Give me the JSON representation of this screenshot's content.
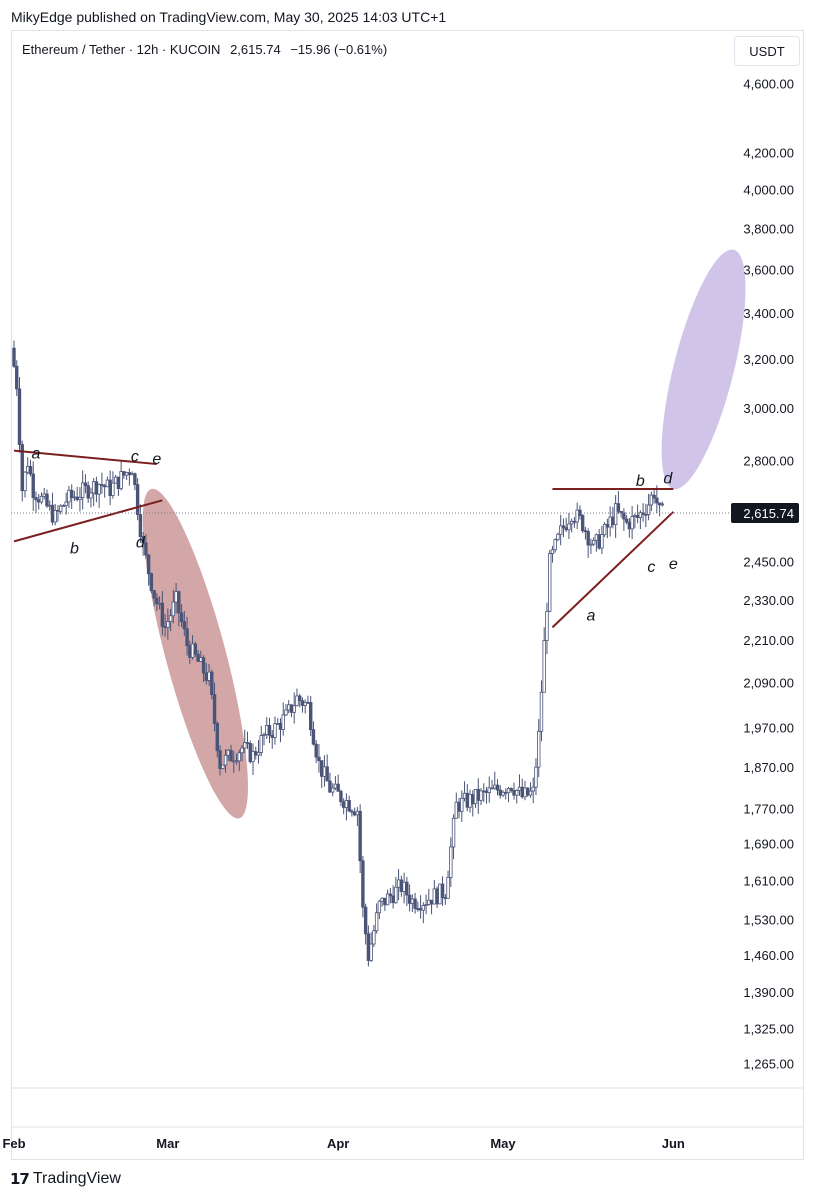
{
  "header": {
    "published_text": "MikyEdge published on TradingView.com, May 30, 2025 14:03 UTC+1"
  },
  "legend": {
    "symbol": "Ethereum / Tether · 12h · KUCOIN",
    "last": "2,615.74",
    "change": "−15.96 (−0.61%)"
  },
  "currency_button": "USDT",
  "brand": {
    "name": "TradingView",
    "logo_icon": "tradingview-logo-icon"
  },
  "colors": {
    "candle": "#4a5477",
    "trendline": "#7b1f1f",
    "bear_ellipse": "#b56a6e",
    "bull_ellipse": "#b39ddb"
  },
  "chart_data": {
    "type": "candlestick",
    "title": "",
    "price_scale": "log",
    "y_ticks": [
      "4,600.00",
      "4,200.00",
      "4,000.00",
      "3,800.00",
      "3,600.00",
      "3,400.00",
      "3,200.00",
      "3,000.00",
      "2,800.00",
      "2,450.00",
      "2,330.00",
      "2,210.00",
      "2,090.00",
      "1,970.00",
      "1,870.00",
      "1,770.00",
      "1,690.00",
      "1,610.00",
      "1,530.00",
      "1,460.00",
      "1,390.00",
      "1,325.00",
      "1,265.00"
    ],
    "y_tick_values": [
      4600,
      4200,
      4000,
      3800,
      3600,
      3400,
      3200,
      3000,
      2800,
      2450,
      2330,
      2210,
      2090,
      1970,
      1870,
      1770,
      1690,
      1610,
      1530,
      1460,
      1390,
      1325,
      1265
    ],
    "x_ticks": [
      "Feb",
      "Mar",
      "Apr",
      "May",
      "Jun"
    ],
    "x_tick_dates": [
      "2025-02-01",
      "2025-03-01",
      "2025-04-01",
      "2025-05-01",
      "2025-06-01"
    ],
    "ylim": [
      1230,
      4750
    ],
    "xlim": [
      "2025-02-01",
      "2025-06-20"
    ],
    "last_price": 2615.74,
    "last_price_label": "2,615.74",
    "path": [
      [
        "2025-02-01",
        3250
      ],
      [
        "2025-02-02",
        3100
      ],
      [
        "2025-02-03",
        2700
      ],
      [
        "2025-02-04",
        2800
      ],
      [
        "2025-02-05",
        2700
      ],
      [
        "2025-02-07",
        2650
      ],
      [
        "2025-02-09",
        2600
      ],
      [
        "2025-02-11",
        2660
      ],
      [
        "2025-02-13",
        2680
      ],
      [
        "2025-02-15",
        2700
      ],
      [
        "2025-02-17",
        2720
      ],
      [
        "2025-02-19",
        2700
      ],
      [
        "2025-02-21",
        2740
      ],
      [
        "2025-02-23",
        2780
      ],
      [
        "2025-02-25",
        2500
      ],
      [
        "2025-02-27",
        2350
      ],
      [
        "2025-03-01",
        2250
      ],
      [
        "2025-03-03",
        2330
      ],
      [
        "2025-03-05",
        2200
      ],
      [
        "2025-03-07",
        2150
      ],
      [
        "2025-03-09",
        2100
      ],
      [
        "2025-03-11",
        1880
      ],
      [
        "2025-03-13",
        1900
      ],
      [
        "2025-03-15",
        1920
      ],
      [
        "2025-03-17",
        1900
      ],
      [
        "2025-03-19",
        1950
      ],
      [
        "2025-03-21",
        1970
      ],
      [
        "2025-03-23",
        2000
      ],
      [
        "2025-03-25",
        2050
      ],
      [
        "2025-03-27",
        2030
      ],
      [
        "2025-03-29",
        1880
      ],
      [
        "2025-03-31",
        1820
      ],
      [
        "2025-04-02",
        1800
      ],
      [
        "2025-04-04",
        1780
      ],
      [
        "2025-04-05",
        1770
      ],
      [
        "2025-04-06",
        1550
      ],
      [
        "2025-04-07",
        1460
      ],
      [
        "2025-04-09",
        1560
      ],
      [
        "2025-04-11",
        1580
      ],
      [
        "2025-04-13",
        1600
      ],
      [
        "2025-04-15",
        1570
      ],
      [
        "2025-04-17",
        1570
      ],
      [
        "2025-04-19",
        1580
      ],
      [
        "2025-04-21",
        1590
      ],
      [
        "2025-04-23",
        1780
      ],
      [
        "2025-04-25",
        1790
      ],
      [
        "2025-04-27",
        1800
      ],
      [
        "2025-04-29",
        1810
      ],
      [
        "2025-05-01",
        1820
      ],
      [
        "2025-05-03",
        1830
      ],
      [
        "2025-05-05",
        1800
      ],
      [
        "2025-05-07",
        1810
      ],
      [
        "2025-05-08",
        1950
      ],
      [
        "2025-05-09",
        2200
      ],
      [
        "2025-05-10",
        2450
      ],
      [
        "2025-05-12",
        2550
      ],
      [
        "2025-05-14",
        2620
      ],
      [
        "2025-05-16",
        2580
      ],
      [
        "2025-05-18",
        2500
      ],
      [
        "2025-05-20",
        2550
      ],
      [
        "2025-05-22",
        2620
      ],
      [
        "2025-05-24",
        2580
      ],
      [
        "2025-05-26",
        2600
      ],
      [
        "2025-05-28",
        2650
      ],
      [
        "2025-05-29",
        2690
      ],
      [
        "2025-05-30",
        2616
      ]
    ],
    "annotations": [
      {
        "type": "triangle",
        "kind": "contracting",
        "upper": [
          [
            "2025-02-01",
            2840
          ],
          [
            "2025-02-27",
            2790
          ]
        ],
        "lower": [
          [
            "2025-02-01",
            2520
          ],
          [
            "2025-02-28",
            2660
          ]
        ]
      },
      {
        "type": "triangle",
        "kind": "contracting",
        "upper": [
          [
            "2025-05-10",
            2700
          ],
          [
            "2025-06-01",
            2700
          ]
        ],
        "lower": [
          [
            "2025-05-10",
            2250
          ],
          [
            "2025-06-01",
            2620
          ]
        ]
      },
      {
        "type": "projection",
        "direction": "down",
        "from": [
          "2025-02-26",
          2700
        ],
        "to": [
          "2025-03-14",
          1750
        ]
      },
      {
        "type": "projection",
        "direction": "up",
        "from": [
          "2025-06-01",
          2700
        ],
        "to": [
          "2025-06-12",
          3700
        ]
      }
    ],
    "wave_labels": [
      {
        "text": "a",
        "date": "2025-02-05",
        "price": 2810
      },
      {
        "text": "b",
        "date": "2025-02-12",
        "price": 2480
      },
      {
        "text": "c",
        "date": "2025-02-23",
        "price": 2800
      },
      {
        "text": "d",
        "date": "2025-02-24",
        "price": 2500
      },
      {
        "text": "e",
        "date": "2025-02-27",
        "price": 2790
      },
      {
        "text": "a",
        "date": "2025-05-17",
        "price": 2270
      },
      {
        "text": "b",
        "date": "2025-05-26",
        "price": 2710
      },
      {
        "text": "c",
        "date": "2025-05-28",
        "price": 2420
      },
      {
        "text": "d",
        "date": "2025-05-31",
        "price": 2720
      },
      {
        "text": "e",
        "date": "2025-06-01",
        "price": 2430
      }
    ]
  }
}
